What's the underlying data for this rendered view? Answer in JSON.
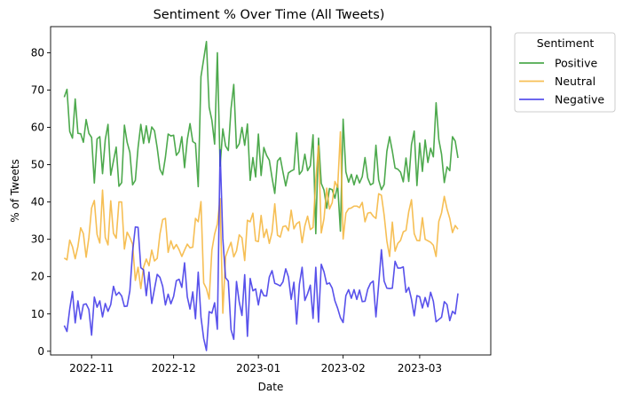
{
  "chart_data": {
    "type": "line",
    "title": "Sentiment % Over Time (All Tweets)",
    "xlabel": "Date",
    "ylabel": "% of Tweets",
    "x_start": "2022-10-22",
    "x_end": "2023-03-22",
    "xlim": [
      "2022-10-17",
      "2023-03-27"
    ],
    "ylim": [
      -1,
      87
    ],
    "yticks": [
      0,
      10,
      20,
      30,
      40,
      50,
      60,
      70,
      80
    ],
    "xticks": [
      {
        "date": "2022-11-01",
        "label": "2022-11"
      },
      {
        "date": "2022-12-01",
        "label": "2022-12"
      },
      {
        "date": "2023-01-01",
        "label": "2023-01"
      },
      {
        "date": "2023-02-01",
        "label": "2023-02"
      },
      {
        "date": "2023-03-01",
        "label": "2023-03"
      }
    ],
    "grid": false,
    "legend": {
      "title": "Sentiment",
      "placement": "outside-right-top"
    },
    "series": [
      {
        "name": "Positive",
        "color": "#2e9a2e",
        "values": [
          68.1,
          70.2,
          58.9,
          57.1,
          67.6,
          58.4,
          58.3,
          56.0,
          62.1,
          58.4,
          57.3,
          45.1,
          56.9,
          57.5,
          47.6,
          56.7,
          60.8,
          47.2,
          51.0,
          54.7,
          44.2,
          45.2,
          60.6,
          56.0,
          53.3,
          44.6,
          45.8,
          54.6,
          60.8,
          55.7,
          60.4,
          55.9,
          60.1,
          59.1,
          54.5,
          48.8,
          47.3,
          52.0,
          58.2,
          57.7,
          57.9,
          52.5,
          53.5,
          57.5,
          49.2,
          56.7,
          61.0,
          56.2,
          55.7,
          44.1,
          73.6,
          78.3,
          83.0,
          65.4,
          61.9,
          55.5,
          80.0,
          49.6,
          59.6,
          55.0,
          53.8,
          65.0,
          71.5,
          54.4,
          55.6,
          60.0,
          55.2,
          60.9,
          45.8,
          51.9,
          46.7,
          58.2,
          47.1,
          54.6,
          52.5,
          51.2,
          46.5,
          42.3,
          51.0,
          51.9,
          48.0,
          44.3,
          47.8,
          48.3,
          48.7,
          58.5,
          47.4,
          48.4,
          52.8,
          48.4,
          49.7,
          58.0,
          31.5,
          57.1,
          45.0,
          43.2,
          38.3,
          43.6,
          43.3,
          41.0,
          44.6,
          32.2,
          62.2,
          48.1,
          45.3,
          47.4,
          44.6,
          47.2,
          45.1,
          46.8,
          51.9,
          46.4,
          44.6,
          45.0,
          55.2,
          45.9,
          43.3,
          44.7,
          53.6,
          57.5,
          53.6,
          49.1,
          48.8,
          48.0,
          45.4,
          51.8,
          45.5,
          55.4,
          59.0,
          44.4,
          55.8,
          48.2,
          56.6,
          50.6,
          54.4,
          52.1,
          66.6,
          56.7,
          52.8,
          45.2,
          49.4,
          48.4,
          57.5,
          56.3,
          51.8
        ]
      },
      {
        "name": "Neutral",
        "color": "#f5b437",
        "values": [
          25.0,
          24.5,
          29.8,
          28.0,
          24.8,
          28.1,
          33.1,
          31.5,
          25.2,
          30.4,
          38.4,
          40.4,
          31.3,
          29.0,
          43.2,
          30.5,
          28.5,
          40.3,
          31.6,
          30.3,
          40.0,
          40.0,
          27.4,
          31.9,
          30.5,
          28.7,
          19.0,
          22.5,
          16.8,
          22.5,
          24.7,
          22.9,
          27.1,
          24.2,
          24.9,
          31.4,
          35.3,
          35.6,
          26.5,
          29.6,
          27.4,
          28.6,
          27.2,
          25.4,
          27.1,
          28.7,
          27.7,
          27.9,
          35.6,
          34.7,
          40.1,
          18.3,
          16.8,
          14.0,
          27.1,
          31.4,
          34.1,
          40.9,
          10.2,
          25.3,
          27.4,
          29.2,
          25.3,
          26.9,
          31.2,
          30.4,
          24.3,
          35.1,
          34.7,
          37.0,
          29.6,
          29.4,
          36.4,
          30.5,
          32.7,
          28.9,
          31.9,
          39.5,
          31.1,
          30.6,
          33.4,
          33.6,
          32.3,
          37.8,
          32.8,
          34.2,
          34.7,
          29.1,
          33.6,
          36.2,
          32.6,
          33.2,
          46.0,
          55.1,
          31.7,
          35.5,
          43.7,
          38.1,
          39.8,
          45.5,
          43.9,
          58.8,
          30.1,
          37.0,
          38.2,
          38.4,
          38.9,
          38.9,
          38.5,
          39.9,
          34.7,
          37.0,
          37.2,
          36.2,
          35.6,
          42.2,
          41.8,
          36.5,
          29.5,
          25.4,
          34.6,
          26.8,
          28.9,
          29.7,
          32.0,
          32.4,
          37.4,
          40.6,
          31.5,
          29.7,
          29.6,
          35.8,
          30.0,
          29.6,
          29.2,
          28.4,
          25.4,
          34.8,
          37.1,
          41.5,
          38.1,
          35.6,
          31.8,
          33.7,
          32.7
        ]
      },
      {
        "name": "Negative",
        "color": "#3b33e8",
        "values": [
          6.9,
          5.3,
          11.3,
          16.0,
          7.6,
          13.5,
          8.6,
          12.5,
          12.7,
          11.2,
          4.3,
          14.5,
          11.8,
          13.5,
          9.2,
          12.8,
          10.7,
          12.5,
          17.4,
          15.0,
          15.8,
          14.8,
          12.0,
          12.1,
          16.2,
          26.7,
          33.3,
          33.2,
          22.4,
          21.8,
          14.9,
          21.2,
          12.8,
          16.7,
          20.6,
          19.8,
          17.4,
          12.4,
          15.3,
          12.7,
          14.7,
          18.9,
          19.3,
          17.1,
          23.7,
          14.6,
          11.3,
          15.9,
          8.7,
          21.2,
          9.2,
          3.4,
          0.2,
          10.6,
          10.2,
          13.0,
          5.9,
          54.0,
          30.2,
          19.7,
          18.8,
          5.8,
          3.2,
          18.7,
          13.2,
          9.6,
          20.5,
          4.0,
          19.5,
          16.2,
          16.7,
          12.4,
          16.5,
          14.9,
          14.8,
          19.9,
          21.6,
          18.2,
          17.9,
          17.5,
          18.6,
          22.1,
          19.9,
          13.9,
          18.5,
          7.3,
          17.9,
          22.5,
          13.6,
          15.4,
          17.7,
          8.8,
          22.5,
          7.8,
          23.3,
          21.3,
          18.0,
          18.3,
          16.9,
          13.5,
          11.5,
          9.0,
          7.7,
          14.9,
          16.5,
          14.2,
          16.5,
          13.9,
          16.4,
          13.3,
          13.4,
          16.6,
          18.2,
          18.8,
          9.2,
          17.9,
          27.2,
          18.8,
          16.9,
          16.8,
          16.9,
          24.1,
          22.3,
          22.3,
          22.6,
          15.8,
          17.1,
          13.9,
          9.5,
          14.9,
          14.6,
          11.6,
          14.4,
          11.9,
          15.8,
          13.4,
          7.9,
          8.5,
          9.1,
          13.3,
          12.5,
          8.2,
          10.7,
          10.0,
          15.5
        ]
      }
    ]
  }
}
